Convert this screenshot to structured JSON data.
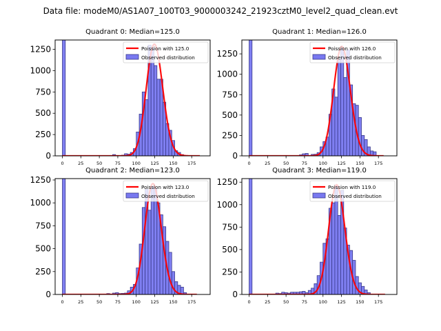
{
  "figure": {
    "suptitle": "Data file: modeM0/AS1A07_100T03_9000003242_21923cztM0_level2_quad_clean.evt"
  },
  "colors": {
    "bar_fill": "#7878f0",
    "bar_edge": "#3a3a8a",
    "poisson_line": "#ff0000"
  },
  "chart_data": [
    {
      "type": "bar",
      "title": "Quadrant 0: Median=125.0",
      "xlabel": "",
      "ylabel": "",
      "xlim": [
        -9.8,
        200
      ],
      "ylim": [
        0,
        1360
      ],
      "xticks": [
        0,
        25,
        50,
        75,
        100,
        125,
        150,
        175
      ],
      "yticks": [
        0,
        250,
        500,
        750,
        1000,
        1250
      ],
      "bin_width": 4,
      "bin_starts": [
        0,
        64,
        68,
        72,
        76,
        80,
        84,
        88,
        92,
        96,
        100,
        104,
        108,
        112,
        116,
        120,
        124,
        128,
        132,
        136,
        140,
        144,
        148,
        152,
        156,
        160,
        164,
        168
      ],
      "values": [
        1400,
        4,
        15,
        5,
        3,
        8,
        25,
        20,
        40,
        85,
        280,
        490,
        750,
        660,
        1300,
        1270,
        1060,
        900,
        900,
        630,
        380,
        300,
        180,
        60,
        40,
        15,
        5,
        2
      ],
      "poisson_mean": 125.0,
      "poisson_peak": 1310,
      "poisson_x_range": [
        0,
        186
      ],
      "legend": [
        "Poission with 125.0",
        "Observed distribution"
      ],
      "legend_loc": "upper right"
    },
    {
      "type": "bar",
      "title": "Quadrant 1: Median=126.0",
      "xlabel": "",
      "ylabel": "",
      "xlim": [
        -9.8,
        200
      ],
      "ylim": [
        0,
        1420
      ],
      "xticks": [
        0,
        25,
        50,
        75,
        100,
        125,
        150,
        175
      ],
      "yticks": [
        0,
        250,
        500,
        750,
        1000,
        1250
      ],
      "bin_width": 4,
      "bin_starts": [
        0,
        68,
        72,
        76,
        80,
        84,
        88,
        92,
        96,
        100,
        104,
        108,
        112,
        116,
        120,
        124,
        128,
        132,
        136,
        140,
        144,
        148,
        152,
        156,
        160,
        164,
        168
      ],
      "values": [
        1450,
        12,
        25,
        30,
        3,
        18,
        20,
        40,
        110,
        175,
        230,
        510,
        820,
        720,
        1180,
        1320,
        960,
        1300,
        870,
        640,
        620,
        470,
        250,
        200,
        110,
        60,
        50
      ],
      "poisson_mean": 126.0,
      "poisson_peak": 1340,
      "poisson_x_range": [
        0,
        182
      ],
      "legend": [
        "Poission with 126.0",
        "Observed distribution"
      ],
      "legend_loc": "upper right"
    },
    {
      "type": "bar",
      "title": "Quadrant 2: Median=123.0",
      "xlabel": "",
      "ylabel": "",
      "xlim": [
        -9.8,
        200
      ],
      "ylim": [
        0,
        1265
      ],
      "xticks": [
        0,
        25,
        50,
        75,
        100,
        125,
        150,
        175
      ],
      "yticks": [
        0,
        250,
        500,
        750,
        1000,
        1250
      ],
      "bin_width": 4,
      "bin_starts": [
        0,
        60,
        64,
        68,
        72,
        76,
        80,
        84,
        88,
        92,
        96,
        100,
        104,
        108,
        112,
        116,
        120,
        124,
        128,
        132,
        136,
        140,
        144,
        148,
        152,
        156,
        160,
        164
      ],
      "values": [
        1400,
        10,
        5,
        15,
        20,
        10,
        12,
        15,
        40,
        80,
        110,
        290,
        550,
        950,
        1150,
        920,
        1180,
        1160,
        1000,
        870,
        740,
        580,
        460,
        250,
        140,
        100,
        80,
        20
      ],
      "poisson_mean": 123.0,
      "poisson_peak": 1210,
      "poisson_x_range": [
        0,
        182
      ],
      "legend": [
        "Poission with 123.0",
        "Observed distribution"
      ],
      "legend_loc": "upper right"
    },
    {
      "type": "bar",
      "title": "Quadrant 3: Median=119.0",
      "xlabel": "",
      "ylabel": "",
      "xlim": [
        -9.8,
        200
      ],
      "ylim": [
        0,
        1290
      ],
      "xticks": [
        0,
        25,
        50,
        75,
        100,
        125,
        150,
        175
      ],
      "yticks": [
        0,
        250,
        500,
        750,
        1000,
        1250
      ],
      "bin_width": 4,
      "bin_starts": [
        0,
        36,
        40,
        44,
        48,
        52,
        56,
        60,
        64,
        68,
        72,
        76,
        80,
        84,
        88,
        92,
        96,
        100,
        104,
        108,
        112,
        116,
        120,
        124,
        128,
        132,
        136,
        140,
        144,
        148,
        152,
        156,
        160
      ],
      "values": [
        1400,
        15,
        10,
        25,
        20,
        15,
        25,
        25,
        25,
        30,
        35,
        20,
        45,
        70,
        120,
        210,
        360,
        570,
        620,
        960,
        1020,
        1210,
        880,
        1160,
        740,
        550,
        490,
        380,
        200,
        130,
        90,
        50,
        20
      ],
      "poisson_mean": 119.0,
      "poisson_peak": 1220,
      "poisson_x_range": [
        0,
        184
      ],
      "legend": [
        "Poission with 119.0",
        "Observed distribution"
      ],
      "legend_loc": "upper right"
    }
  ]
}
